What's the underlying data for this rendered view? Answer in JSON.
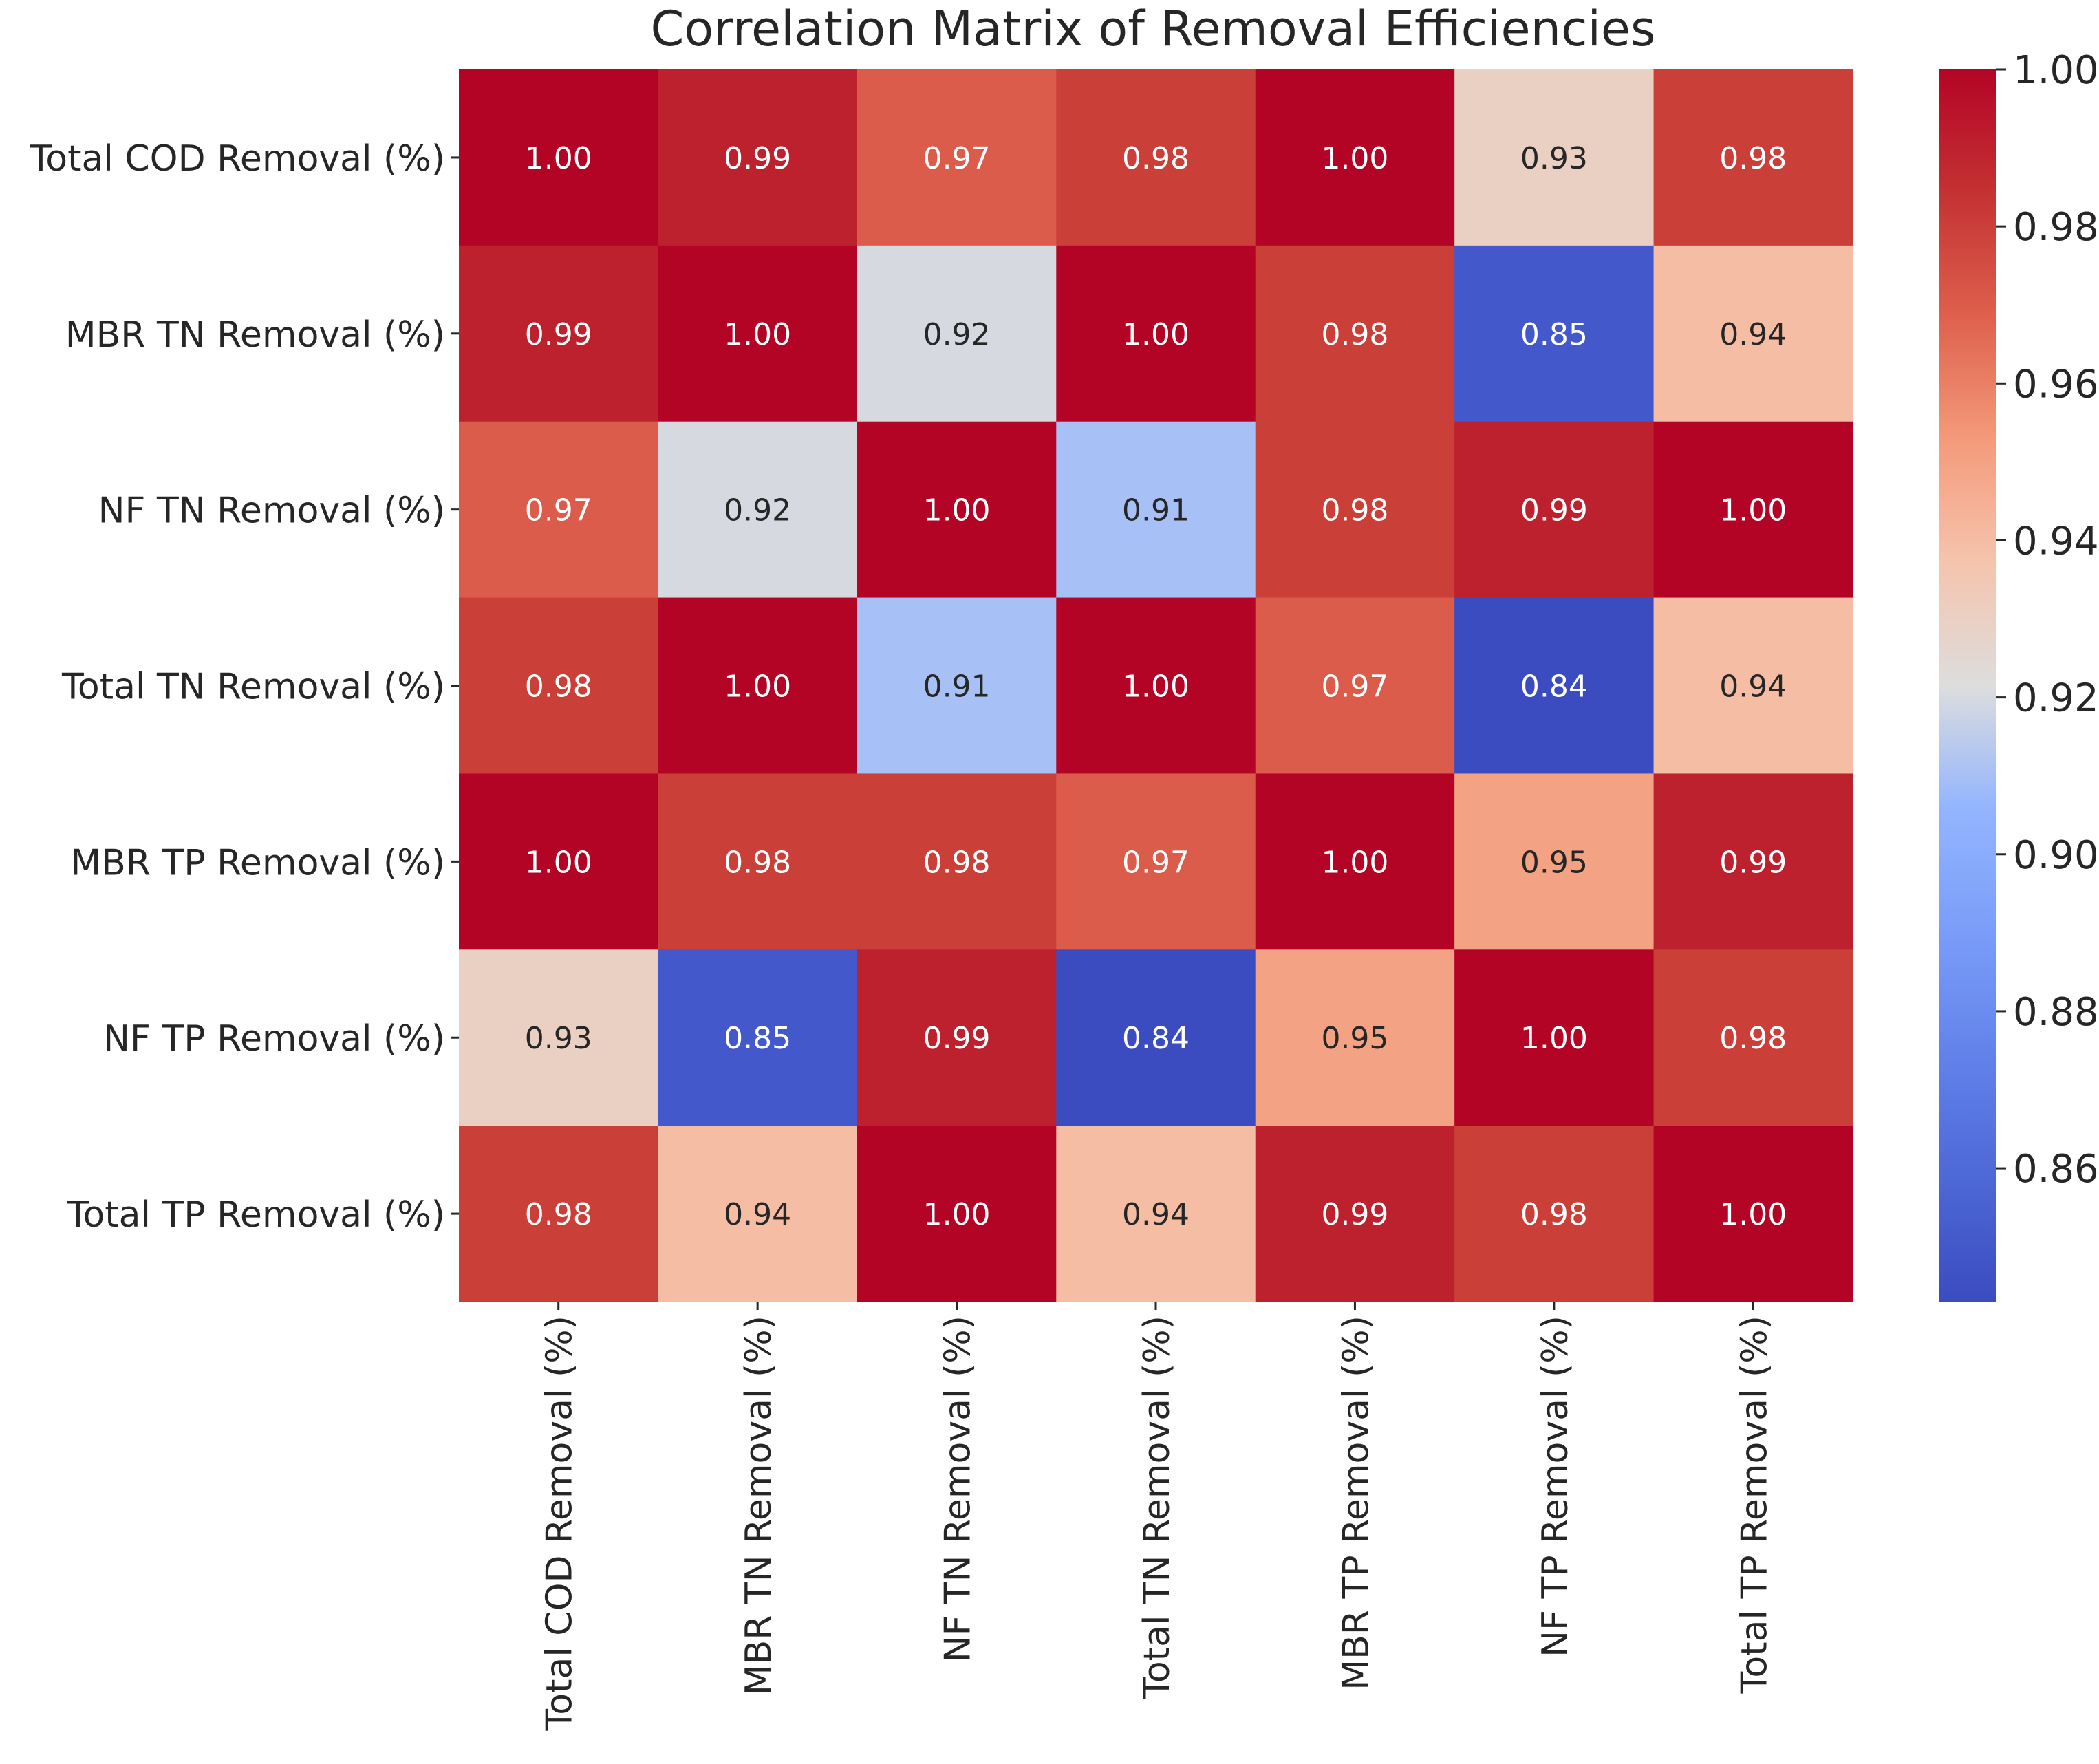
{
  "chart_data": {
    "type": "heatmap",
    "title": "Correlation Matrix of Removal Efficiencies",
    "row_labels": [
      "Total COD Removal (%)",
      "MBR TN Removal (%)",
      "NF TN Removal (%)",
      "Total TN Removal (%)",
      "MBR TP Removal (%)",
      "NF TP Removal (%)",
      "Total TP Removal (%)"
    ],
    "col_labels": [
      "Total COD Removal (%)",
      "MBR TN Removal (%)",
      "NF TN Removal (%)",
      "Total TN Removal (%)",
      "MBR TP Removal (%)",
      "NF TP Removal (%)",
      "Total TP Removal (%)"
    ],
    "values": [
      [
        1.0,
        0.99,
        0.97,
        0.98,
        1.0,
        0.93,
        0.98
      ],
      [
        0.99,
        1.0,
        0.92,
        1.0,
        0.98,
        0.85,
        0.94
      ],
      [
        0.97,
        0.92,
        1.0,
        0.91,
        0.98,
        0.99,
        1.0
      ],
      [
        0.98,
        1.0,
        0.91,
        1.0,
        0.97,
        0.84,
        0.94
      ],
      [
        1.0,
        0.98,
        0.98,
        0.97,
        1.0,
        0.95,
        0.99
      ],
      [
        0.93,
        0.85,
        0.99,
        0.84,
        0.95,
        1.0,
        0.98
      ],
      [
        0.98,
        0.94,
        1.0,
        0.94,
        0.99,
        0.98,
        1.0
      ]
    ],
    "colorbar": {
      "colormap": "coolwarm",
      "range": [
        0.843,
        1.0
      ],
      "ticks": [
        0.86,
        0.88,
        0.9,
        0.92,
        0.94,
        0.96,
        0.98,
        1.0
      ],
      "tick_labels": [
        "0.86",
        "0.88",
        "0.90",
        "0.92",
        "0.94",
        "0.96",
        "0.98",
        "1.00"
      ]
    },
    "annotation_format": "2 decimals",
    "grid": false
  }
}
